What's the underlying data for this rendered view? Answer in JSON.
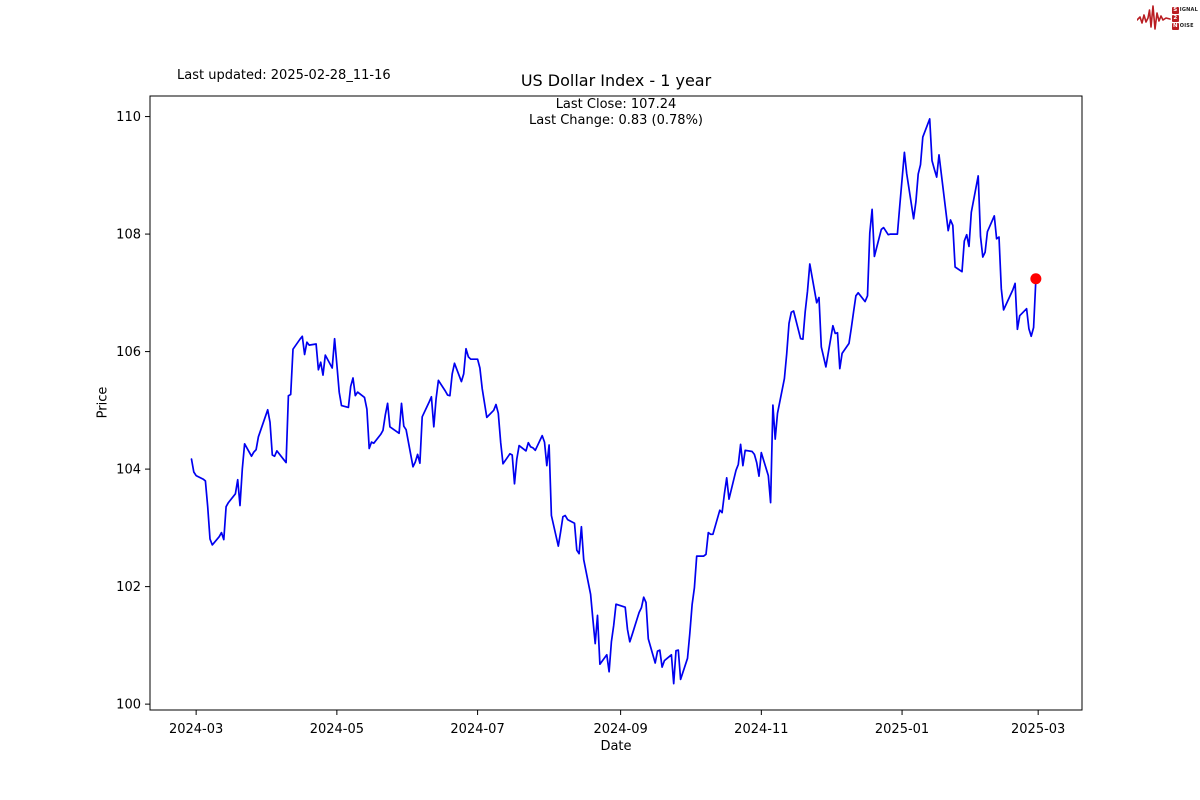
{
  "header": {
    "last_updated": "Last updated: 2025-02-28_11-16",
    "logo": {
      "color": "#b91d22",
      "line1_initial": "S",
      "line1_rest": "IGNAL",
      "line2_initial": "2",
      "line3_initial": "N",
      "line3_rest": "OISE"
    }
  },
  "chart_data": {
    "type": "line",
    "title": "US Dollar Index - 1 year",
    "last_close_label": "Last Close: 107.24",
    "last_change_label": "Last Change: 0.83 (0.78%)",
    "xlabel": "Date",
    "ylabel": "Price",
    "grid": false,
    "legend": "none",
    "line_color": "#0000f0",
    "marker_color": "#ff0000",
    "axis_color": "#000000",
    "ylim": [
      99.9,
      110.35
    ],
    "xlim": [
      "2024-02-10",
      "2025-03-20"
    ],
    "yticks": [
      100,
      102,
      104,
      106,
      108,
      110
    ],
    "xticks": [
      {
        "date": "2024-03-01",
        "label": "2024-03"
      },
      {
        "date": "2024-05-01",
        "label": "2024-05"
      },
      {
        "date": "2024-07-01",
        "label": "2024-07"
      },
      {
        "date": "2024-09-01",
        "label": "2024-09"
      },
      {
        "date": "2024-11-01",
        "label": "2024-11"
      },
      {
        "date": "2025-01-01",
        "label": "2025-01"
      },
      {
        "date": "2025-03-01",
        "label": "2025-03"
      }
    ],
    "series": [
      {
        "name": "US Dollar Index",
        "points": [
          [
            "2024-02-28",
            104.17
          ],
          [
            "2024-02-29",
            103.95
          ],
          [
            "2024-03-01",
            103.89
          ],
          [
            "2024-03-04",
            103.83
          ],
          [
            "2024-03-05",
            103.8
          ],
          [
            "2024-03-06",
            103.36
          ],
          [
            "2024-03-07",
            102.81
          ],
          [
            "2024-03-08",
            102.71
          ],
          [
            "2024-03-11",
            102.85
          ],
          [
            "2024-03-12",
            102.92
          ],
          [
            "2024-03-13",
            102.8
          ],
          [
            "2024-03-14",
            103.36
          ],
          [
            "2024-03-15",
            103.43
          ],
          [
            "2024-03-18",
            103.58
          ],
          [
            "2024-03-19",
            103.82
          ],
          [
            "2024-03-20",
            103.38
          ],
          [
            "2024-03-21",
            104.0
          ],
          [
            "2024-03-22",
            104.43
          ],
          [
            "2024-03-25",
            104.22
          ],
          [
            "2024-03-26",
            104.29
          ],
          [
            "2024-03-27",
            104.33
          ],
          [
            "2024-03-28",
            104.55
          ],
          [
            "2024-04-01",
            105.01
          ],
          [
            "2024-04-02",
            104.8
          ],
          [
            "2024-04-03",
            104.24
          ],
          [
            "2024-04-04",
            104.22
          ],
          [
            "2024-04-05",
            104.31
          ],
          [
            "2024-04-08",
            104.16
          ],
          [
            "2024-04-09",
            104.11
          ],
          [
            "2024-04-10",
            105.25
          ],
          [
            "2024-04-11",
            105.27
          ],
          [
            "2024-04-12",
            106.04
          ],
          [
            "2024-04-15",
            106.21
          ],
          [
            "2024-04-16",
            106.26
          ],
          [
            "2024-04-17",
            105.95
          ],
          [
            "2024-04-18",
            106.16
          ],
          [
            "2024-04-19",
            106.11
          ],
          [
            "2024-04-22",
            106.13
          ],
          [
            "2024-04-23",
            105.69
          ],
          [
            "2024-04-24",
            105.82
          ],
          [
            "2024-04-25",
            105.6
          ],
          [
            "2024-04-26",
            105.94
          ],
          [
            "2024-04-29",
            105.72
          ],
          [
            "2024-04-30",
            106.22
          ],
          [
            "2024-05-01",
            105.77
          ],
          [
            "2024-05-02",
            105.31
          ],
          [
            "2024-05-03",
            105.08
          ],
          [
            "2024-05-06",
            105.05
          ],
          [
            "2024-05-07",
            105.41
          ],
          [
            "2024-05-08",
            105.55
          ],
          [
            "2024-05-09",
            105.25
          ],
          [
            "2024-05-10",
            105.31
          ],
          [
            "2024-05-13",
            105.22
          ],
          [
            "2024-05-14",
            105.02
          ],
          [
            "2024-05-15",
            104.35
          ],
          [
            "2024-05-16",
            104.46
          ],
          [
            "2024-05-17",
            104.44
          ],
          [
            "2024-05-20",
            104.59
          ],
          [
            "2024-05-21",
            104.66
          ],
          [
            "2024-05-22",
            104.92
          ],
          [
            "2024-05-23",
            105.12
          ],
          [
            "2024-05-24",
            104.72
          ],
          [
            "2024-05-28",
            104.61
          ],
          [
            "2024-05-29",
            105.12
          ],
          [
            "2024-05-30",
            104.73
          ],
          [
            "2024-05-31",
            104.67
          ],
          [
            "2024-06-03",
            104.04
          ],
          [
            "2024-06-04",
            104.12
          ],
          [
            "2024-06-05",
            104.25
          ],
          [
            "2024-06-06",
            104.1
          ],
          [
            "2024-06-07",
            104.89
          ],
          [
            "2024-06-10",
            105.14
          ],
          [
            "2024-06-11",
            105.23
          ],
          [
            "2024-06-12",
            104.72
          ],
          [
            "2024-06-13",
            105.2
          ],
          [
            "2024-06-14",
            105.51
          ],
          [
            "2024-06-17",
            105.33
          ],
          [
            "2024-06-18",
            105.26
          ],
          [
            "2024-06-19",
            105.25
          ],
          [
            "2024-06-20",
            105.62
          ],
          [
            "2024-06-21",
            105.8
          ],
          [
            "2024-06-24",
            105.49
          ],
          [
            "2024-06-25",
            105.62
          ],
          [
            "2024-06-26",
            106.05
          ],
          [
            "2024-06-27",
            105.91
          ],
          [
            "2024-06-28",
            105.87
          ],
          [
            "2024-07-01",
            105.87
          ],
          [
            "2024-07-02",
            105.72
          ],
          [
            "2024-07-03",
            105.37
          ],
          [
            "2024-07-05",
            104.88
          ],
          [
            "2024-07-08",
            105.0
          ],
          [
            "2024-07-09",
            105.1
          ],
          [
            "2024-07-10",
            104.95
          ],
          [
            "2024-07-11",
            104.45
          ],
          [
            "2024-07-12",
            104.09
          ],
          [
            "2024-07-15",
            104.26
          ],
          [
            "2024-07-16",
            104.24
          ],
          [
            "2024-07-17",
            103.75
          ],
          [
            "2024-07-18",
            104.17
          ],
          [
            "2024-07-19",
            104.4
          ],
          [
            "2024-07-22",
            104.31
          ],
          [
            "2024-07-23",
            104.45
          ],
          [
            "2024-07-24",
            104.38
          ],
          [
            "2024-07-25",
            104.36
          ],
          [
            "2024-07-26",
            104.32
          ],
          [
            "2024-07-29",
            104.57
          ],
          [
            "2024-07-30",
            104.46
          ],
          [
            "2024-07-31",
            104.06
          ],
          [
            "2024-08-01",
            104.41
          ],
          [
            "2024-08-02",
            103.21
          ],
          [
            "2024-08-05",
            102.69
          ],
          [
            "2024-08-06",
            102.93
          ],
          [
            "2024-08-07",
            103.19
          ],
          [
            "2024-08-08",
            103.21
          ],
          [
            "2024-08-09",
            103.14
          ],
          [
            "2024-08-12",
            103.08
          ],
          [
            "2024-08-13",
            102.62
          ],
          [
            "2024-08-14",
            102.56
          ],
          [
            "2024-08-15",
            103.02
          ],
          [
            "2024-08-16",
            102.46
          ],
          [
            "2024-08-19",
            101.87
          ],
          [
            "2024-08-20",
            101.44
          ],
          [
            "2024-08-21",
            101.03
          ],
          [
            "2024-08-22",
            101.51
          ],
          [
            "2024-08-23",
            100.68
          ],
          [
            "2024-08-26",
            100.84
          ],
          [
            "2024-08-27",
            100.55
          ],
          [
            "2024-08-28",
            101.06
          ],
          [
            "2024-08-29",
            101.34
          ],
          [
            "2024-08-30",
            101.7
          ],
          [
            "2024-09-03",
            101.65
          ],
          [
            "2024-09-04",
            101.27
          ],
          [
            "2024-09-05",
            101.06
          ],
          [
            "2024-09-06",
            101.18
          ],
          [
            "2024-09-09",
            101.56
          ],
          [
            "2024-09-10",
            101.64
          ],
          [
            "2024-09-11",
            101.82
          ],
          [
            "2024-09-12",
            101.73
          ],
          [
            "2024-09-13",
            101.11
          ],
          [
            "2024-09-16",
            100.7
          ],
          [
            "2024-09-17",
            100.9
          ],
          [
            "2024-09-18",
            100.92
          ],
          [
            "2024-09-19",
            100.63
          ],
          [
            "2024-09-20",
            100.74
          ],
          [
            "2024-09-23",
            100.84
          ],
          [
            "2024-09-24",
            100.35
          ],
          [
            "2024-09-25",
            100.91
          ],
          [
            "2024-09-26",
            100.92
          ],
          [
            "2024-09-27",
            100.42
          ],
          [
            "2024-09-30",
            100.78
          ],
          [
            "2024-10-01",
            101.2
          ],
          [
            "2024-10-02",
            101.69
          ],
          [
            "2024-10-03",
            101.98
          ],
          [
            "2024-10-04",
            102.52
          ],
          [
            "2024-10-07",
            102.52
          ],
          [
            "2024-10-08",
            102.55
          ],
          [
            "2024-10-09",
            102.92
          ],
          [
            "2024-10-10",
            102.89
          ],
          [
            "2024-10-11",
            102.89
          ],
          [
            "2024-10-14",
            103.3
          ],
          [
            "2024-10-15",
            103.26
          ],
          [
            "2024-10-16",
            103.58
          ],
          [
            "2024-10-17",
            103.85
          ],
          [
            "2024-10-18",
            103.49
          ],
          [
            "2024-10-21",
            103.98
          ],
          [
            "2024-10-22",
            104.08
          ],
          [
            "2024-10-23",
            104.42
          ],
          [
            "2024-10-24",
            104.06
          ],
          [
            "2024-10-25",
            104.32
          ],
          [
            "2024-10-28",
            104.3
          ],
          [
            "2024-10-29",
            104.25
          ],
          [
            "2024-10-30",
            104.11
          ],
          [
            "2024-10-31",
            103.88
          ],
          [
            "2024-11-01",
            104.28
          ],
          [
            "2024-11-04",
            103.89
          ],
          [
            "2024-11-05",
            103.43
          ],
          [
            "2024-11-06",
            105.09
          ],
          [
            "2024-11-07",
            104.51
          ],
          [
            "2024-11-08",
            104.95
          ],
          [
            "2024-11-11",
            105.54
          ],
          [
            "2024-11-12",
            105.96
          ],
          [
            "2024-11-13",
            106.48
          ],
          [
            "2024-11-14",
            106.67
          ],
          [
            "2024-11-15",
            106.69
          ],
          [
            "2024-11-18",
            106.22
          ],
          [
            "2024-11-19",
            106.21
          ],
          [
            "2024-11-20",
            106.68
          ],
          [
            "2024-11-21",
            107.03
          ],
          [
            "2024-11-22",
            107.49
          ],
          [
            "2024-11-25",
            106.83
          ],
          [
            "2024-11-26",
            106.92
          ],
          [
            "2024-11-27",
            106.08
          ],
          [
            "2024-11-29",
            105.74
          ],
          [
            "2024-12-02",
            106.44
          ],
          [
            "2024-12-03",
            106.31
          ],
          [
            "2024-12-04",
            106.32
          ],
          [
            "2024-12-05",
            105.71
          ],
          [
            "2024-12-06",
            105.97
          ],
          [
            "2024-12-09",
            106.14
          ],
          [
            "2024-12-10",
            106.4
          ],
          [
            "2024-12-11",
            106.68
          ],
          [
            "2024-12-12",
            106.95
          ],
          [
            "2024-12-13",
            107.0
          ],
          [
            "2024-12-16",
            106.85
          ],
          [
            "2024-12-17",
            106.95
          ],
          [
            "2024-12-18",
            108.02
          ],
          [
            "2024-12-19",
            108.42
          ],
          [
            "2024-12-20",
            107.62
          ],
          [
            "2024-12-23",
            108.08
          ],
          [
            "2024-12-24",
            108.11
          ],
          [
            "2024-12-26",
            107.99
          ],
          [
            "2024-12-27",
            108.0
          ],
          [
            "2024-12-30",
            108.0
          ],
          [
            "2024-12-31",
            108.49
          ],
          [
            "2025-01-02",
            109.39
          ],
          [
            "2025-01-03",
            109.03
          ],
          [
            "2025-01-06",
            108.26
          ],
          [
            "2025-01-07",
            108.55
          ],
          [
            "2025-01-08",
            109.02
          ],
          [
            "2025-01-09",
            109.18
          ],
          [
            "2025-01-10",
            109.65
          ],
          [
            "2025-01-13",
            109.96
          ],
          [
            "2025-01-14",
            109.25
          ],
          [
            "2025-01-15",
            109.1
          ],
          [
            "2025-01-16",
            108.97
          ],
          [
            "2025-01-17",
            109.35
          ],
          [
            "2025-01-21",
            108.06
          ],
          [
            "2025-01-22",
            108.24
          ],
          [
            "2025-01-23",
            108.15
          ],
          [
            "2025-01-24",
            107.44
          ],
          [
            "2025-01-27",
            107.36
          ],
          [
            "2025-01-28",
            107.88
          ],
          [
            "2025-01-29",
            107.99
          ],
          [
            "2025-01-30",
            107.79
          ],
          [
            "2025-01-31",
            108.37
          ],
          [
            "2025-02-03",
            108.99
          ],
          [
            "2025-02-04",
            107.96
          ],
          [
            "2025-02-05",
            107.61
          ],
          [
            "2025-02-06",
            107.69
          ],
          [
            "2025-02-07",
            108.04
          ],
          [
            "2025-02-10",
            108.31
          ],
          [
            "2025-02-11",
            107.92
          ],
          [
            "2025-02-12",
            107.95
          ],
          [
            "2025-02-13",
            107.07
          ],
          [
            "2025-02-14",
            106.71
          ],
          [
            "2025-02-18",
            107.05
          ],
          [
            "2025-02-19",
            107.16
          ],
          [
            "2025-02-20",
            106.38
          ],
          [
            "2025-02-21",
            106.61
          ],
          [
            "2025-02-24",
            106.73
          ],
          [
            "2025-02-25",
            106.39
          ],
          [
            "2025-02-26",
            106.26
          ],
          [
            "2025-02-27",
            106.41
          ],
          [
            "2025-02-28",
            107.24
          ]
        ]
      }
    ]
  }
}
